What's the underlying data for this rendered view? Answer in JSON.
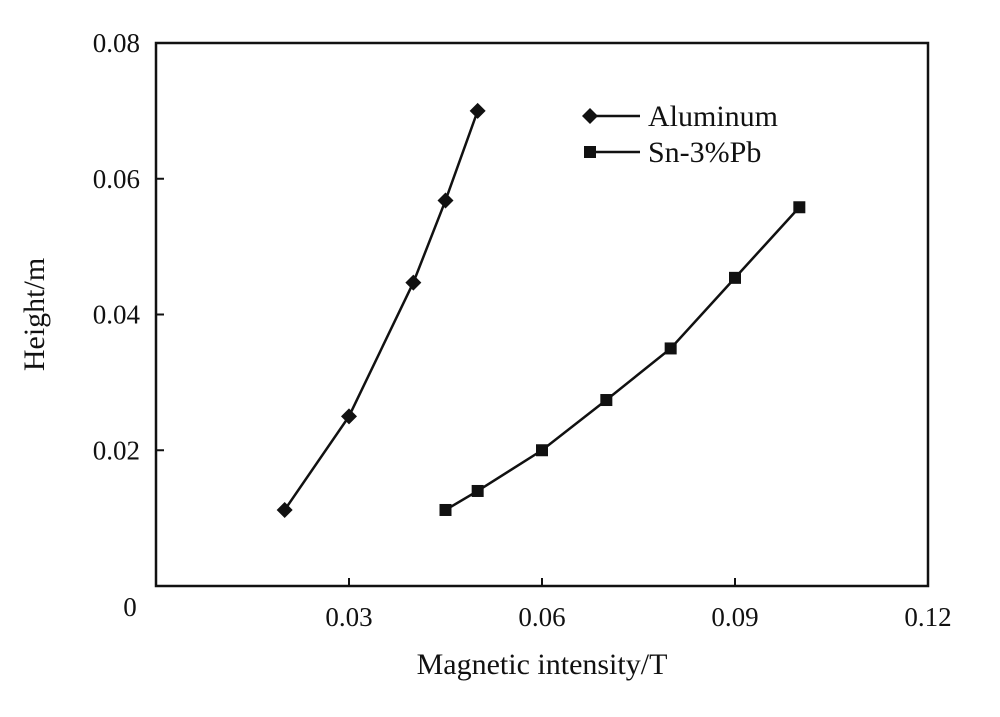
{
  "chart_data": {
    "type": "line",
    "title": "",
    "xlabel": "Magnetic intensity/T",
    "ylabel": "Height/m",
    "xlim": [
      0,
      0.12
    ],
    "ylim": [
      0,
      0.08
    ],
    "xticks": [
      0.03,
      0.06,
      0.09,
      0.12
    ],
    "yticks": [
      0.02,
      0.04,
      0.06,
      0.08
    ],
    "xtick_labels": [
      "0.03",
      "0.06",
      "0.09",
      "0.12"
    ],
    "ytick_labels": [
      "0.02",
      "0.04",
      "0.06",
      "0.08"
    ],
    "origin_label": "0",
    "grid": false,
    "legend_position": "top-right",
    "series": [
      {
        "name": "Aluminum",
        "marker": "diamond",
        "color": "#111111",
        "x": [
          0.02,
          0.03,
          0.04,
          0.045,
          0.05
        ],
        "y": [
          0.0112,
          0.025,
          0.0447,
          0.0568,
          0.07
        ]
      },
      {
        "name": "Sn-3%Pb",
        "marker": "square",
        "color": "#111111",
        "x": [
          0.045,
          0.05,
          0.06,
          0.07,
          0.08,
          0.09,
          0.1
        ],
        "y": [
          0.0112,
          0.014,
          0.02,
          0.0274,
          0.035,
          0.0454,
          0.0558
        ]
      }
    ]
  }
}
